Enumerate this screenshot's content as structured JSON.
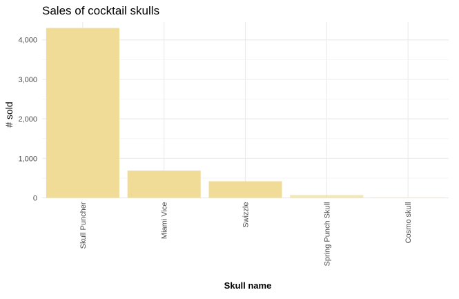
{
  "chart_data": {
    "type": "bar",
    "title": "Sales of cocktail skulls",
    "xlabel": "Skull name",
    "ylabel": "# sold",
    "categories": [
      "Skull Puncher",
      "Miami Vice",
      "Swizzle",
      "Spring Punch Skull",
      "Cosmo skull"
    ],
    "values": [
      4300,
      690,
      420,
      70,
      10
    ],
    "bar_alpha": [
      1,
      1,
      1,
      0.7,
      0.25
    ],
    "ylim": [
      0,
      4450
    ],
    "yticks": [
      0,
      1000,
      2000,
      3000,
      4000
    ],
    "ytick_labels": [
      "0",
      "1,000",
      "2,000",
      "3,000",
      "4,000"
    ],
    "grid": true,
    "bar_color": "#f0dc96",
    "grid_major_color": "#ebebeb",
    "grid_minor_color": "#f5f5f5",
    "text_color": "#4d4d4d",
    "title_color": "#000000"
  }
}
